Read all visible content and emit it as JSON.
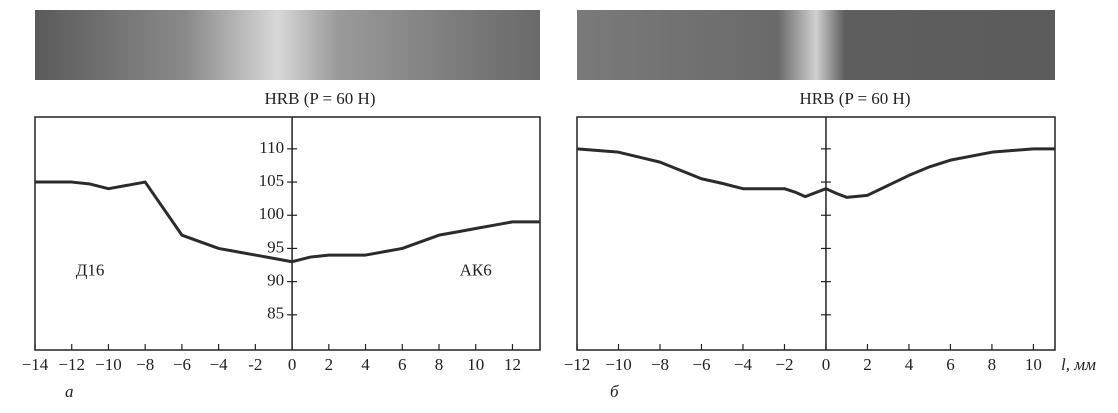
{
  "chart_data": [
    {
      "type": "line",
      "title": "HRB (P = 60 Н)",
      "panel_label": "а",
      "xlim": [
        -14,
        13.5
      ],
      "ylim": [
        79.7,
        114.8
      ],
      "xticks": [
        {
          "value": -14,
          "label": "−14"
        },
        {
          "value": -12,
          "label": "−12"
        },
        {
          "value": -10,
          "label": "−10"
        },
        {
          "value": -8,
          "label": "−8"
        },
        {
          "value": -6,
          "label": "−6"
        },
        {
          "value": -4,
          "label": "−4"
        },
        {
          "value": -2,
          "label": "-2"
        },
        0,
        2,
        4,
        6,
        8,
        10,
        12
      ],
      "yticks": [
        85,
        90,
        95,
        100,
        105,
        110
      ],
      "ytick_labels": true,
      "annotations": [
        {
          "text": "Д16",
          "x": -11,
          "y": 91.5
        },
        {
          "text": "АК6",
          "x": 10,
          "y": 91.5
        }
      ],
      "series": [
        {
          "color": "#2b2b2b",
          "x": [
            -14,
            -12,
            -11,
            -10,
            -9,
            -8,
            -6,
            -4,
            -3,
            -2,
            -1,
            0,
            1,
            2,
            4,
            5,
            6,
            7,
            8,
            9,
            10,
            11,
            12,
            13.5
          ],
          "values": [
            105,
            105,
            104.7,
            104,
            104.5,
            105,
            97,
            95,
            94.5,
            94,
            93.5,
            93,
            93.7,
            94,
            94,
            94.5,
            95,
            96,
            97,
            97.5,
            98,
            98.5,
            99,
            99
          ]
        }
      ]
    },
    {
      "type": "line",
      "title": "HRB (P = 60 Н)",
      "panel_label": "б",
      "xlabel": "l, мм",
      "xlim": [
        -12,
        11.04
      ],
      "ylim": [
        79.7,
        114.8
      ],
      "xticks": [
        {
          "value": -12,
          "label": "−12"
        },
        {
          "value": -10,
          "label": "−10"
        },
        {
          "value": -8,
          "label": "−8"
        },
        {
          "value": -6,
          "label": "−6"
        },
        {
          "value": -4,
          "label": "−4"
        },
        {
          "value": -2,
          "label": "−2"
        },
        0,
        2,
        4,
        6,
        8,
        10
      ],
      "yticks": [
        85,
        90,
        95,
        100,
        105,
        110
      ],
      "ytick_labels": false,
      "series": [
        {
          "color": "#2b2b2b",
          "x": [
            -12,
            -10,
            -8,
            -6,
            -5,
            -4,
            -2,
            -1.5,
            -1,
            0,
            0.5,
            1,
            2,
            3,
            4,
            5,
            6,
            8,
            10,
            11.04
          ],
          "values": [
            110,
            109.5,
            108,
            105.5,
            104.8,
            104,
            104,
            103.5,
            102.8,
            104,
            103.3,
            102.7,
            103,
            104.5,
            106,
            107.3,
            108.3,
            109.5,
            110,
            110
          ]
        }
      ]
    }
  ]
}
